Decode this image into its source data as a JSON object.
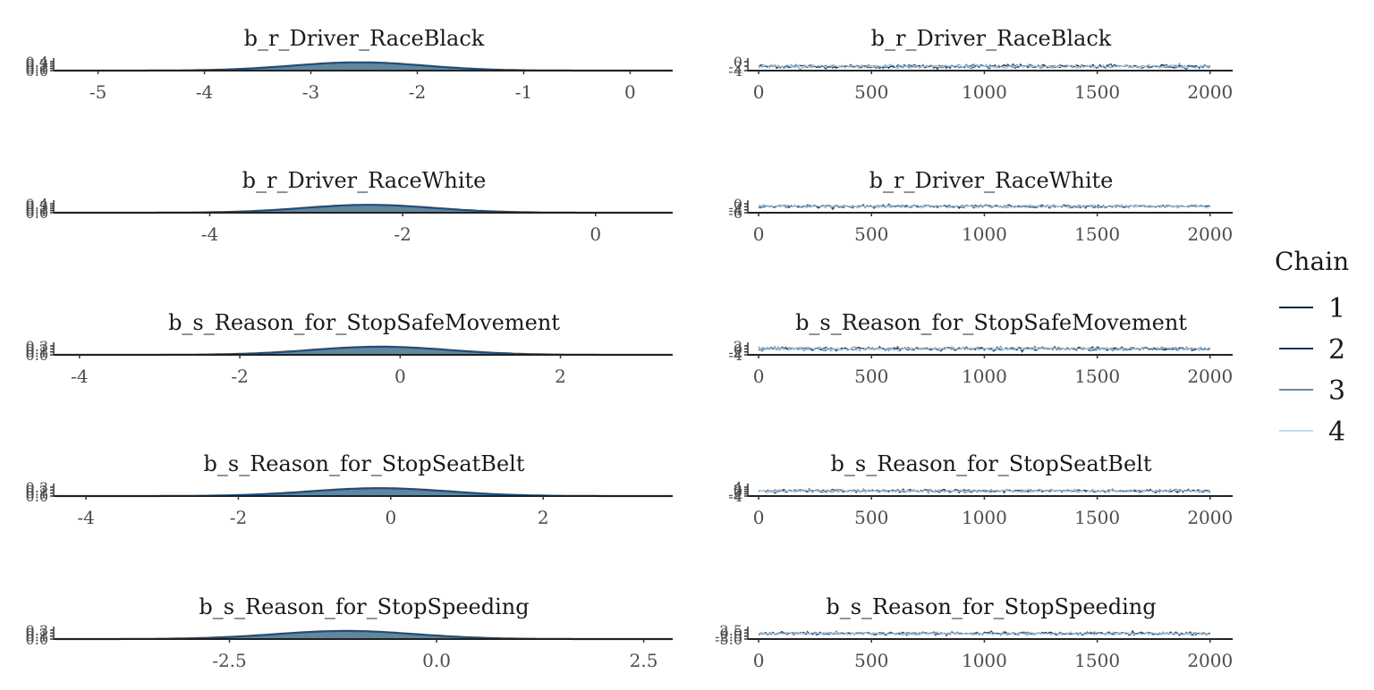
{
  "legend": {
    "title": "Chain",
    "entries": [
      {
        "label": "1",
        "color": "#0b2545"
      },
      {
        "label": "2",
        "color": "#13315c"
      },
      {
        "label": "3",
        "color": "#5b8fb0"
      },
      {
        "label": "4",
        "color": "#c6dbeb"
      }
    ]
  },
  "chart_data": [
    {
      "type": "area",
      "panel": "density",
      "row": 0,
      "title": "b_r_Driver_RaceBlack",
      "xlim": [
        -5.4,
        0.4
      ],
      "ylim": [
        0,
        0.5
      ],
      "x_ticks": [
        -5,
        -4,
        -3,
        -2,
        -1,
        0
      ],
      "x_tick_labels": [
        "-5",
        "-4",
        "-3",
        "-2",
        "-1",
        "0"
      ],
      "y_tick_labels": [
        "0.0",
        "0.1",
        "0.2",
        "0.3",
        "0.4"
      ],
      "density": {
        "mean": -2.55,
        "sd": 0.62,
        "peak": 0.42
      },
      "fill": "#5a7f97",
      "stroke": "#1f4e79"
    },
    {
      "type": "line",
      "panel": "trace",
      "row": 0,
      "title": "b_r_Driver_RaceBlack",
      "xlim": [
        -40,
        2100
      ],
      "ylim": [
        -4.5,
        0.5
      ],
      "x_ticks": [
        0,
        500,
        1000,
        1500,
        2000
      ],
      "x_tick_labels": [
        "0",
        "500",
        "1000",
        "1500",
        "2000"
      ],
      "y_tick_labels": [
        "-4",
        "-2",
        "0"
      ],
      "iterations": 2000,
      "trace": {
        "mean": -2.55,
        "sd": 0.62
      }
    },
    {
      "type": "area",
      "panel": "density",
      "row": 1,
      "title": "b_r_Driver_RaceWhite",
      "xlim": [
        -5.6,
        0.8
      ],
      "ylim": [
        0,
        0.5
      ],
      "x_ticks": [
        -4,
        -2,
        0
      ],
      "x_tick_labels": [
        "-4",
        "-2",
        "0"
      ],
      "y_tick_labels": [
        "0.0",
        "0.1",
        "0.2",
        "0.3",
        "0.4"
      ],
      "density": {
        "mean": -2.35,
        "sd": 0.68,
        "peak": 0.4
      },
      "fill": "#5a7f97",
      "stroke": "#1f4e79"
    },
    {
      "type": "line",
      "panel": "trace",
      "row": 1,
      "title": "b_r_Driver_RaceWhite",
      "xlim": [
        -40,
        2100
      ],
      "ylim": [
        -6.5,
        0.5
      ],
      "x_ticks": [
        0,
        500,
        1000,
        1500,
        2000
      ],
      "x_tick_labels": [
        "0",
        "500",
        "1000",
        "1500",
        "2000"
      ],
      "y_tick_labels": [
        "-6",
        "-4",
        "-2",
        "0"
      ],
      "iterations": 2000,
      "trace": {
        "mean": -2.35,
        "sd": 0.68
      }
    },
    {
      "type": "area",
      "panel": "density",
      "row": 2,
      "title": "b_s_Reason_for_StopSafeMovement",
      "xlim": [
        -4.3,
        3.4
      ],
      "ylim": [
        0,
        0.4
      ],
      "x_ticks": [
        -4,
        -2,
        0,
        2
      ],
      "x_tick_labels": [
        "-4",
        "-2",
        "0",
        "2"
      ],
      "y_tick_labels": [
        "0.0",
        "0.1",
        "0.2",
        "0.3"
      ],
      "density": {
        "mean": -0.25,
        "sd": 0.85,
        "peak": 0.33
      },
      "fill": "#5a7f97",
      "stroke": "#1f4e79"
    },
    {
      "type": "line",
      "panel": "trace",
      "row": 2,
      "title": "b_s_Reason_for_StopSafeMovement",
      "xlim": [
        -40,
        2100
      ],
      "ylim": [
        -4.5,
        3
      ],
      "x_ticks": [
        0,
        500,
        1000,
        1500,
        2000
      ],
      "x_tick_labels": [
        "0",
        "500",
        "1000",
        "1500",
        "2000"
      ],
      "y_tick_labels": [
        "-4",
        "-2",
        "0",
        "2"
      ],
      "iterations": 2000,
      "trace": {
        "mean": -0.25,
        "sd": 0.85
      }
    },
    {
      "type": "area",
      "panel": "density",
      "row": 3,
      "title": "b_s_Reason_for_StopSeatBelt",
      "xlim": [
        -4.4,
        3.7
      ],
      "ylim": [
        0,
        0.4
      ],
      "x_ticks": [
        -4,
        -2,
        0,
        2
      ],
      "x_tick_labels": [
        "-4",
        "-2",
        "0",
        "2"
      ],
      "y_tick_labels": [
        "0.0",
        "0.1",
        "0.2",
        "0.3"
      ],
      "density": {
        "mean": -0.15,
        "sd": 0.9,
        "peak": 0.32
      },
      "fill": "#5a7f97",
      "stroke": "#1f4e79"
    },
    {
      "type": "line",
      "panel": "trace",
      "row": 3,
      "title": "b_s_Reason_for_StopSeatBelt",
      "xlim": [
        -40,
        2100
      ],
      "ylim": [
        -4.5,
        4.5
      ],
      "x_ticks": [
        0,
        500,
        1000,
        1500,
        2000
      ],
      "x_tick_labels": [
        "0",
        "500",
        "1000",
        "1500",
        "2000"
      ],
      "y_tick_labels": [
        "-4",
        "-2",
        "0",
        "2",
        "4"
      ],
      "iterations": 2000,
      "trace": {
        "mean": -0.15,
        "sd": 0.9
      }
    },
    {
      "type": "area",
      "panel": "density",
      "row": 4,
      "title": "b_s_Reason_for_StopSpeeding",
      "xlim": [
        -4.6,
        2.85
      ],
      "ylim": [
        0,
        0.4
      ],
      "x_ticks": [
        -2.5,
        0.0,
        2.5
      ],
      "x_tick_labels": [
        "-2.5",
        "0.0",
        "2.5"
      ],
      "y_tick_labels": [
        "0.0",
        "0.1",
        "0.2",
        "0.3"
      ],
      "density": {
        "mean": -1.1,
        "sd": 0.85,
        "peak": 0.33
      },
      "fill": "#5a7f97",
      "stroke": "#1f4e79"
    },
    {
      "type": "line",
      "panel": "trace",
      "row": 4,
      "title": "b_s_Reason_for_StopSpeeding",
      "xlim": [
        -40,
        2100
      ],
      "ylim": [
        -5.5,
        3
      ],
      "x_ticks": [
        0,
        500,
        1000,
        1500,
        2000
      ],
      "x_tick_labels": [
        "0",
        "500",
        "1000",
        "1500",
        "2000"
      ],
      "y_tick_labels": [
        "-5.0",
        "-2.5",
        "0.0",
        "2.5"
      ],
      "iterations": 2000,
      "trace": {
        "mean": -1.1,
        "sd": 0.85
      }
    }
  ]
}
